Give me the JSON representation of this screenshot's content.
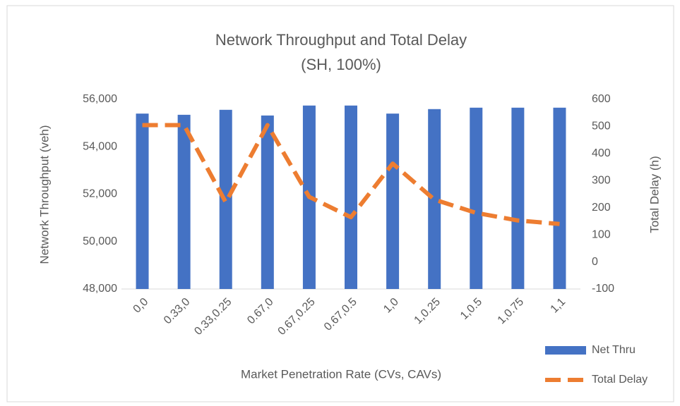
{
  "chart_data": {
    "type": "bar_line",
    "title": "Network Throughput and Total Delay",
    "subtitle": "(SH, 100%)",
    "x_label": "Market Penetration Rate (CVs, CAVs)",
    "y_label": "Network Throughput (veh)",
    "y2_label": "Total Delay (h)",
    "categories": [
      "0,0",
      "0.33,0",
      "0.33,0.25",
      "0.67,0",
      "0.67,0.25",
      "0.67,0.5",
      "1,0",
      "1,0.25",
      "1,0.5",
      "1,0.75",
      "1,1"
    ],
    "series": [
      {
        "name": "Net Thru",
        "color": "#4472c4",
        "type": "bar",
        "values": [
          55400,
          55350,
          55560,
          55320,
          55740,
          55740,
          55400,
          55590,
          55650,
          55650,
          55650
        ]
      },
      {
        "name": "Total Delay",
        "color": "#ed7d31",
        "type": "line",
        "axis": "y2",
        "dashed": true,
        "values": [
          505,
          505,
          220,
          505,
          240,
          165,
          363,
          230,
          181,
          153,
          140
        ]
      }
    ],
    "ylim": [
      48000,
      56000
    ],
    "yticks": [
      {
        "value": 48000,
        "label": "48,000"
      },
      {
        "value": 50000,
        "label": "50,000"
      },
      {
        "value": 52000,
        "label": "52,000"
      },
      {
        "value": 54000,
        "label": "54,000"
      },
      {
        "value": 56000,
        "label": "56,000"
      }
    ],
    "y2lim": [
      -100,
      600
    ],
    "y2ticks": [
      -100,
      0,
      100,
      200,
      300,
      400,
      500,
      600
    ],
    "legend": "bottom-right"
  }
}
